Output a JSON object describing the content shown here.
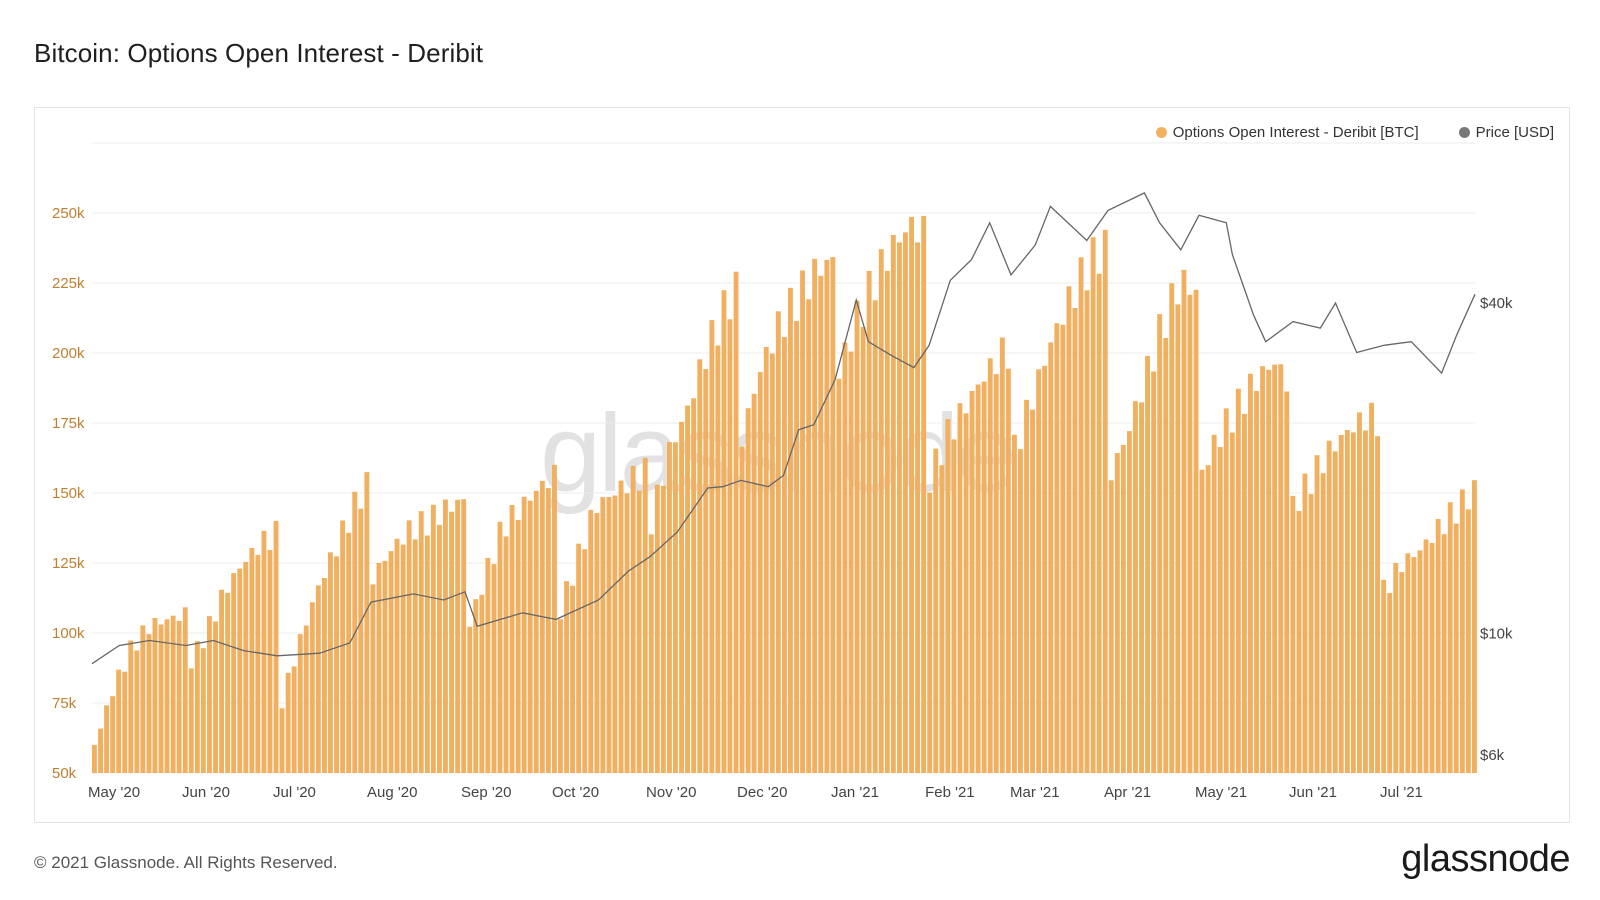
{
  "title": "Bitcoin: Options Open Interest - Deribit",
  "footer": "© 2021 Glassnode. All Rights Reserved.",
  "brand": "glassnode",
  "watermark": "glassnode",
  "colors": {
    "bar": "#f0b060",
    "price": "#666666",
    "left_axis_text": "#c08030",
    "grid": "#ececec"
  },
  "legend": [
    {
      "label": "Options Open Interest - Deribit [BTC]",
      "color": "#f0b060"
    },
    {
      "label": "Price [USD]",
      "color": "#777777"
    }
  ],
  "chart_data": {
    "type": "bar",
    "title": "Bitcoin: Options Open Interest - Deribit",
    "x_range": [
      "2020-05-01",
      "2021-07-31"
    ],
    "x_ticks": [
      "May '20",
      "Jun '20",
      "Jul '20",
      "Aug '20",
      "Sep '20",
      "Oct '20",
      "Nov '20",
      "Dec '20",
      "Jan '21",
      "Feb '21",
      "Mar '21",
      "Apr '21",
      "May '21",
      "Jun '21",
      "Jul '21"
    ],
    "y_left": {
      "ticks": [
        "50k",
        "75k",
        "100k",
        "125k",
        "150k",
        "175k",
        "200k",
        "225k",
        "250k"
      ],
      "tick_values": [
        50000,
        75000,
        100000,
        125000,
        150000,
        175000,
        200000,
        225000,
        250000
      ],
      "range": [
        50000,
        275000
      ]
    },
    "y_right": {
      "scale": "log",
      "ticks": [
        "$6k",
        "$10k",
        "$40k"
      ],
      "tick_values": [
        6000,
        10000,
        40000
      ]
    },
    "grid": true,
    "legend_position": "top-right",
    "series": [
      {
        "name": "Options Open Interest - Deribit [BTC]",
        "type": "bar",
        "monthly_cycle_values": [
          [
            60000,
            80000,
            95000,
            103000,
            105000,
            107000
          ],
          [
            88000,
            100000,
            115000,
            125000,
            132000,
            136000
          ],
          [
            72000,
            95000,
            115000,
            130000,
            145000,
            157000
          ],
          [
            120000,
            130000,
            137000,
            140000,
            145000,
            148000
          ],
          [
            100000,
            120000,
            138000,
            145000,
            152000,
            157000
          ],
          [
            105000,
            125000,
            145000,
            150000,
            155000,
            158000
          ],
          [
            140000,
            165000,
            180000,
            200000,
            215000,
            227000
          ],
          [
            170000,
            195000,
            210000,
            220000,
            230000,
            234000
          ],
          [
            190000,
            210000,
            225000,
            238000,
            246000,
            241000
          ],
          [
            155000,
            170000,
            180000,
            190000,
            198000,
            203000
          ],
          [
            165000,
            185000,
            205000,
            220000,
            232000,
            239000
          ],
          [
            155000,
            170000,
            190000,
            210000,
            226000,
            221000
          ],
          [
            155000,
            170000,
            180000,
            190000,
            197000,
            187000
          ],
          [
            145000,
            155000,
            165000,
            172000,
            177000,
            176000
          ],
          [
            115000,
            125000,
            130000,
            138000,
            145000,
            152000
          ]
        ]
      },
      {
        "name": "Price [USD]",
        "type": "line",
        "x": [
          "2020-05-01",
          "2020-05-10",
          "2020-05-20",
          "2020-06-01",
          "2020-06-10",
          "2020-06-20",
          "2020-07-01",
          "2020-07-15",
          "2020-07-25",
          "2020-08-01",
          "2020-08-15",
          "2020-08-25",
          "2020-09-01",
          "2020-09-05",
          "2020-09-20",
          "2020-10-01",
          "2020-10-15",
          "2020-10-25",
          "2020-11-01",
          "2020-11-10",
          "2020-11-20",
          "2020-11-25",
          "2020-12-01",
          "2020-12-10",
          "2020-12-15",
          "2020-12-20",
          "2020-12-25",
          "2021-01-01",
          "2021-01-08",
          "2021-01-12",
          "2021-01-20",
          "2021-01-27",
          "2021-02-01",
          "2021-02-08",
          "2021-02-15",
          "2021-02-21",
          "2021-02-28",
          "2021-03-08",
          "2021-03-13",
          "2021-03-25",
          "2021-04-01",
          "2021-04-13",
          "2021-04-18",
          "2021-04-25",
          "2021-05-01",
          "2021-05-10",
          "2021-05-12",
          "2021-05-19",
          "2021-05-23",
          "2021-06-01",
          "2021-06-10",
          "2021-06-15",
          "2021-06-22",
          "2021-07-01",
          "2021-07-10",
          "2021-07-20",
          "2021-07-25",
          "2021-07-31"
        ],
        "values": [
          8800,
          9500,
          9700,
          9500,
          9700,
          9300,
          9100,
          9200,
          9600,
          11400,
          11800,
          11500,
          11900,
          10300,
          10900,
          10600,
          11500,
          13000,
          13800,
          15300,
          18400,
          18500,
          19000,
          18500,
          19400,
          23500,
          24000,
          29000,
          40500,
          34000,
          32000,
          30500,
          33500,
          44000,
          48000,
          56000,
          45000,
          51000,
          60000,
          52000,
          59000,
          63500,
          56000,
          50000,
          57800,
          56000,
          49000,
          38000,
          34000,
          37000,
          36000,
          40000,
          32500,
          33500,
          34000,
          29800,
          35000,
          41500
        ]
      }
    ]
  }
}
